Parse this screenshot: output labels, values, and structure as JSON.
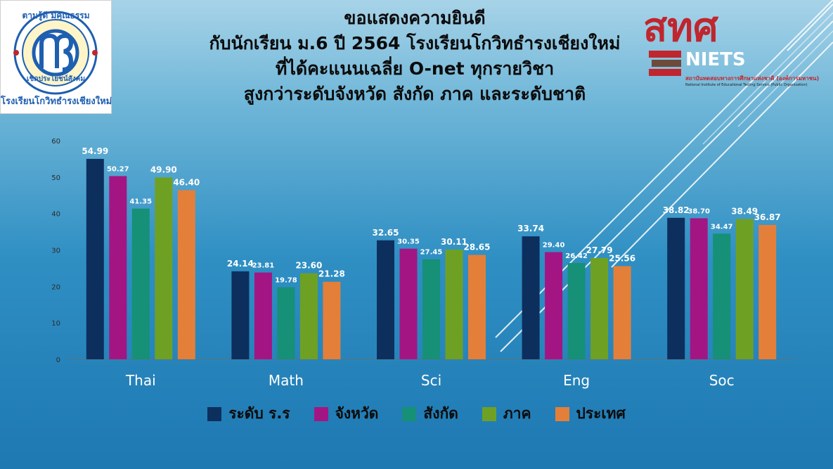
{
  "title_lines": [
    "ขอแสดงความยินดี",
    "กับนักเรียน ม.6 ปี 2564 โรงเรียนโกวิทธำรงเชียงใหม่",
    "ที่ได้คะแนนเฉลี่ย O-net ทุกรายวิชา",
    "สูงกว่าระดับจังหวัด สังกัด ภาค และระดับชาติ"
  ],
  "logos": {
    "school": {
      "top_text": "ตามรู้ดี มีคุณธรรม",
      "mid_text": "เชิดประโยชน์สังคม",
      "bottom_text": "โรงเรียนโกวิทธำรงเชียงใหม่"
    },
    "niets": {
      "thai_abbrev": "สทศ",
      "eng_abbrev": "NIETS",
      "thai_name": "สถาบันทดสอบทางการศึกษาแห่งชาติ (องค์การมหาชน)",
      "eng_name": "National Institute of Educational Testing Service (Public Organization)"
    }
  },
  "colors": {
    "series": [
      "#0d2f5e",
      "#a41584",
      "#169077",
      "#6ea123",
      "#e47f3a"
    ],
    "logo_blue": "#1e5fb0",
    "logo_red": "#c0262e"
  },
  "chart_data": {
    "type": "bar",
    "categories": [
      "Thai",
      "Math",
      "Sci",
      "Eng",
      "Soc"
    ],
    "series": [
      {
        "name": "ระดับ ร.ร",
        "values": [
          54.99,
          24.14,
          32.65,
          33.74,
          38.82
        ]
      },
      {
        "name": "จังหวัด",
        "values": [
          50.27,
          23.81,
          30.35,
          29.4,
          38.7
        ]
      },
      {
        "name": "สังกัด",
        "values": [
          41.35,
          19.78,
          27.45,
          26.42,
          34.47
        ]
      },
      {
        "name": "ภาค",
        "values": [
          49.9,
          23.6,
          30.11,
          27.79,
          38.49
        ]
      },
      {
        "name": "ประเทศ",
        "values": [
          46.4,
          21.28,
          28.65,
          25.56,
          36.87
        ]
      }
    ],
    "labels": [
      [
        "54.99",
        "24.14",
        "32.65",
        "33.74",
        "38.82"
      ],
      [
        "50.27",
        "23.81",
        "30.35",
        "29.40",
        "38.70"
      ],
      [
        "41.35",
        "19.78",
        "27.45",
        "26.42",
        "34.47"
      ],
      [
        "49.90",
        "23.60",
        "30.11",
        "27.79",
        "38.49"
      ],
      [
        "46.40",
        "21.28",
        "28.65",
        "25.56",
        "36.87"
      ]
    ],
    "yticks": [
      "0",
      "10",
      "20",
      "30",
      "40",
      "50",
      "60"
    ],
    "ylim": [
      0,
      60
    ],
    "grid": false,
    "legend": "bottom"
  }
}
